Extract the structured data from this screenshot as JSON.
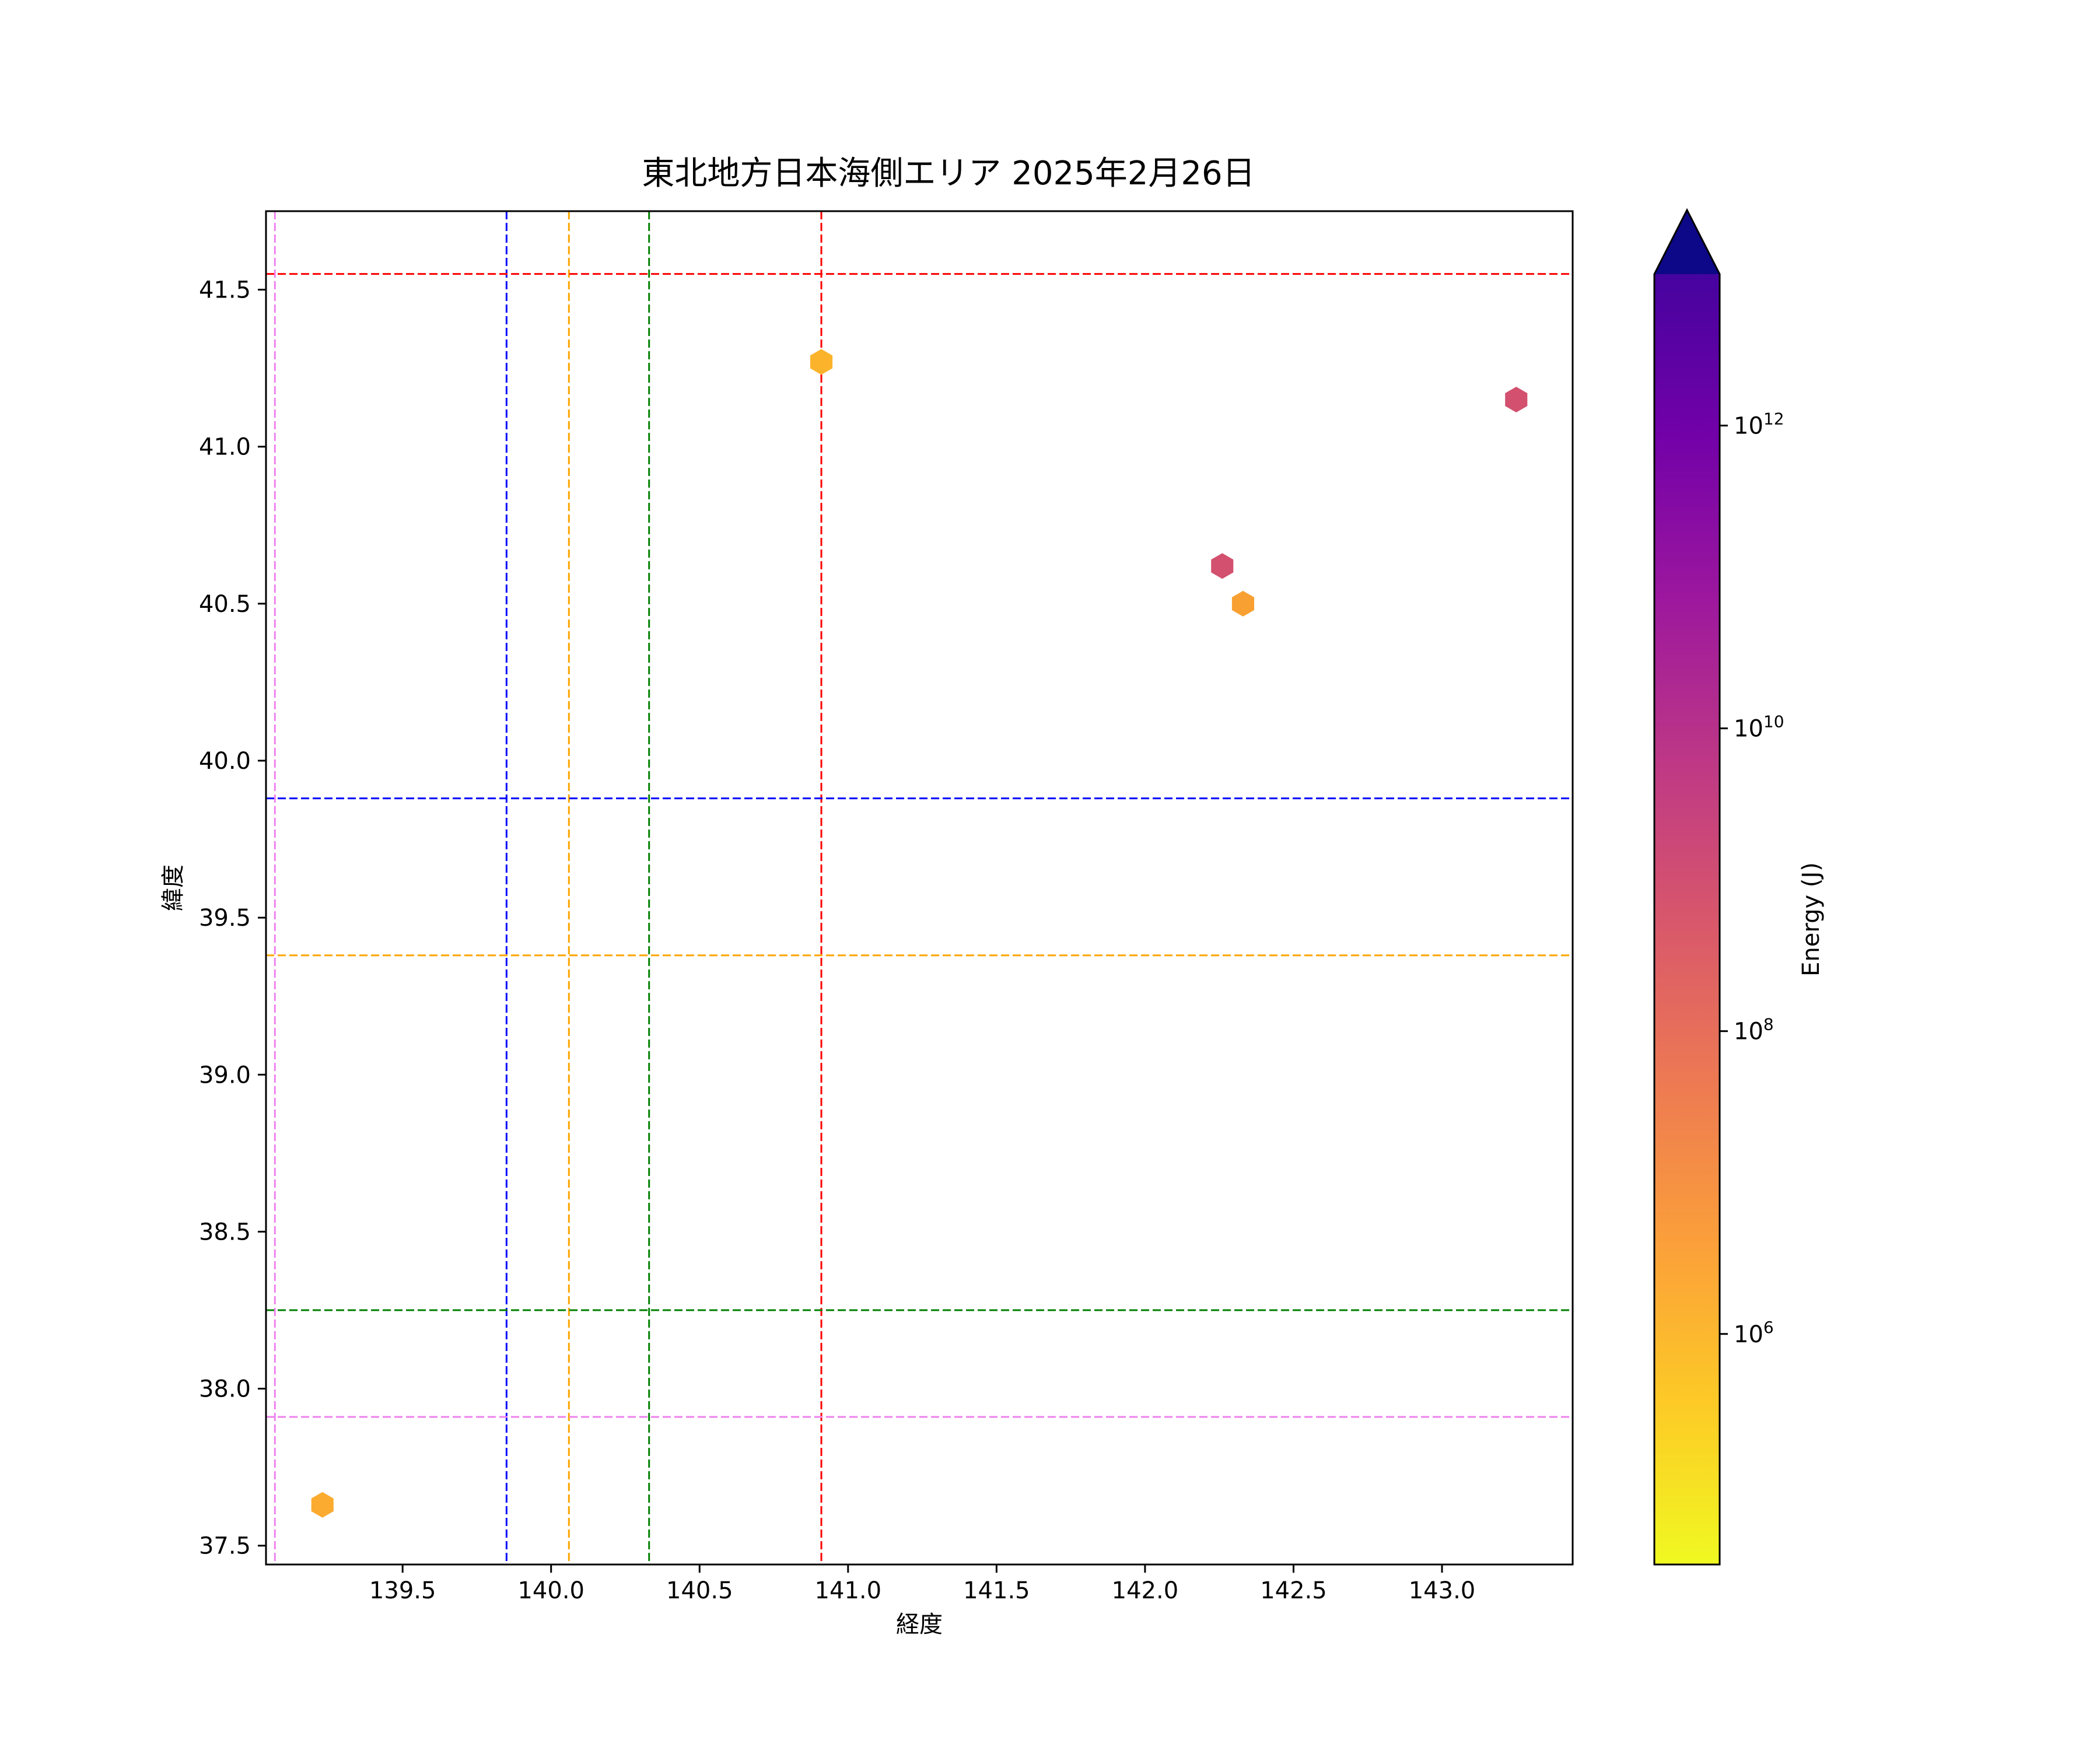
{
  "chart_data": {
    "type": "scatter",
    "title": "東北地方日本海側エリア 2025年2月26日",
    "xlabel": "経度",
    "ylabel": "緯度",
    "xlim": [
      139.04,
      143.44
    ],
    "ylim": [
      37.44,
      41.75
    ],
    "x_ticks": [
      139.5,
      140.0,
      140.5,
      141.0,
      141.5,
      142.0,
      142.5,
      143.0
    ],
    "x_tick_labels": [
      "139.5",
      "140.0",
      "140.5",
      "141.0",
      "141.5",
      "142.0",
      "142.5",
      "143.0"
    ],
    "y_ticks": [
      37.5,
      38.0,
      38.5,
      39.0,
      39.5,
      40.0,
      40.5,
      41.0,
      41.5
    ],
    "y_tick_labels": [
      "37.5",
      "38.0",
      "38.5",
      "39.0",
      "39.5",
      "40.0",
      "40.5",
      "41.0",
      "41.5"
    ],
    "grid": false,
    "marker": "hexagon",
    "points": [
      {
        "x": 140.91,
        "y": 41.27,
        "energy": 1000000,
        "color": "#fbb32c"
      },
      {
        "x": 143.25,
        "y": 41.15,
        "energy": 5000000000,
        "color": "#d3506f"
      },
      {
        "x": 142.26,
        "y": 40.62,
        "energy": 5000000000,
        "color": "#d3506f"
      },
      {
        "x": 142.33,
        "y": 40.5,
        "energy": 3000000,
        "color": "#f9a032"
      },
      {
        "x": 139.23,
        "y": 37.63,
        "energy": 2000000,
        "color": "#fbab2f"
      }
    ],
    "reference_lines": {
      "vertical": [
        {
          "x": 139.07,
          "color": "#ee82ee"
        },
        {
          "x": 139.85,
          "color": "#0000ff"
        },
        {
          "x": 140.06,
          "color": "#ffa500"
        },
        {
          "x": 140.33,
          "color": "#008000"
        },
        {
          "x": 140.91,
          "color": "#ff0000"
        }
      ],
      "horizontal": [
        {
          "y": 41.55,
          "color": "#ff0000"
        },
        {
          "y": 39.88,
          "color": "#0000ff"
        },
        {
          "y": 39.38,
          "color": "#ffa500"
        },
        {
          "y": 38.25,
          "color": "#008000"
        },
        {
          "y": 37.91,
          "color": "#ee82ee"
        }
      ],
      "style": "dashed"
    },
    "colorbar": {
      "label": "Energy (J)",
      "scale": "log",
      "colormap": "plasma_r",
      "range": [
        30000,
        10000000000000
      ],
      "extend": "max",
      "extend_color": "#0d0887",
      "ticks": [
        {
          "value": 1000000,
          "base": "10",
          "exp": "6"
        },
        {
          "value": 100000000,
          "base": "10",
          "exp": "8"
        },
        {
          "value": 10000000000,
          "base": "10",
          "exp": "10"
        },
        {
          "value": 1000000000000,
          "base": "10",
          "exp": "12"
        }
      ]
    }
  }
}
